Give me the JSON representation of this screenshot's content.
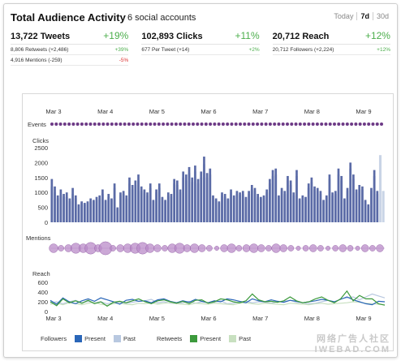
{
  "header": {
    "title": "Total Audience Activity",
    "subtitle": "6 social accounts",
    "ranges": [
      "Today",
      "7d",
      "30d"
    ],
    "active_range": "7d"
  },
  "stats": [
    {
      "label": "13,722 Tweets",
      "pct": "+19%",
      "subs": [
        {
          "label": "8,806 Retweets (+2,486)",
          "pct": "+39%",
          "dir": "up"
        },
        {
          "label": "4,916 Mentions (-259)",
          "pct": "-5%",
          "dir": "down"
        }
      ]
    },
    {
      "label": "102,893 Clicks",
      "pct": "+11%",
      "subs": [
        {
          "label": "677 Per Tweet (+14)",
          "pct": "+2%",
          "dir": "up"
        }
      ]
    },
    {
      "label": "20,712 Reach",
      "pct": "+12%",
      "subs": [
        {
          "label": "20,712 Followers (+2,224)",
          "pct": "+12%",
          "dir": "up"
        }
      ]
    }
  ],
  "colors": {
    "present_bar": "#5a6aa6",
    "past_bar": "#c9d4e6",
    "event_dot": "#6d3a86",
    "mention_bubble": "#b98bc8",
    "followers_present": "#2a66b8",
    "followers_past": "#b8c8e0",
    "retweets_present": "#3c9a3c",
    "retweets_past": "#c8e0c0",
    "positive": "#4cae4c",
    "negative": "#dd3333"
  },
  "chart_data": {
    "type": "bar",
    "x_ticks": [
      "Mar 3",
      "Mar 4",
      "Mar 5",
      "Mar 6",
      "Mar 7",
      "Mar 8",
      "Mar 9"
    ],
    "events_label": "Events",
    "clicks": {
      "label": "Clicks",
      "y_ticks": [
        "2500",
        "2000",
        "1500",
        "1000",
        "500",
        "0"
      ],
      "ylim": [
        0,
        2500
      ],
      "present": [
        1450,
        1200,
        900,
        1100,
        950,
        1000,
        800,
        1150,
        900,
        600,
        700,
        650,
        700,
        800,
        750,
        850,
        900,
        1100,
        750,
        950,
        800,
        1300,
        500,
        1000,
        1050,
        900,
        1500,
        1250,
        1400,
        1600,
        1200,
        1100,
        1000,
        1300,
        750,
        1100,
        1300,
        850,
        750,
        1000,
        950,
        1450,
        1400,
        1100,
        1700,
        1600,
        1850,
        1500,
        1900,
        1450,
        1700,
        2200,
        1650,
        1800,
        900,
        800,
        700,
        1000,
        950,
        800,
        1100,
        900,
        1050,
        1000,
        1050,
        850,
        1050,
        1250,
        1150,
        950,
        850,
        900,
        1100,
        1450,
        1750,
        1800,
        900,
        1150,
        1050,
        1550,
        1400,
        1000,
        1750,
        800,
        900,
        850,
        1300,
        1500,
        1200,
        1150,
        1050,
        750,
        900,
        1600,
        1000,
        1050,
        1800,
        1550,
        800,
        1150,
        2000,
        1600,
        1100,
        1250,
        1200,
        750,
        600,
        1150,
        1750,
        1050,
        1700,
        1200
      ],
      "past": [
        1200,
        1000,
        800,
        900,
        850,
        850,
        700,
        950,
        800,
        550,
        650,
        600,
        650,
        700,
        700,
        750,
        800,
        950,
        700,
        850,
        750,
        1150,
        450,
        900,
        950,
        800,
        1300,
        1100,
        1250,
        1400,
        1050,
        1000,
        900,
        1150,
        700,
        1000,
        1150,
        800,
        700,
        900,
        850,
        1300,
        1250,
        1000,
        1500,
        1400,
        1650,
        1350,
        1700,
        1300,
        1500,
        1950,
        1500,
        1600,
        850,
        750,
        650,
        900,
        850,
        750,
        1000,
        850,
        950,
        900,
        950,
        800,
        950,
        1100,
        1050,
        850,
        800,
        850,
        1000,
        1300,
        1550,
        1600,
        850,
        1050,
        950,
        1400,
        1250,
        900,
        1550,
        750,
        850,
        800,
        1150,
        1350,
        1100,
        1050,
        950,
        700,
        850,
        1450,
        900,
        950,
        1600,
        1400,
        750,
        1050,
        1800,
        1450,
        1000,
        1100,
        1100,
        700,
        550,
        1050,
        1550,
        950,
        2250,
        1050
      ]
    },
    "mentions": {
      "label": "Mentions",
      "values": [
        6,
        4,
        5,
        7,
        6,
        8,
        5,
        9,
        4,
        5,
        6,
        7,
        8,
        6,
        5,
        4,
        6,
        7,
        5,
        6,
        5,
        4,
        3,
        5,
        6,
        4,
        5,
        6,
        5,
        4,
        6,
        5,
        4,
        3,
        4,
        5,
        4,
        3,
        4,
        5,
        4,
        3,
        5,
        4,
        5
      ]
    },
    "reach": {
      "label": "Reach",
      "y_ticks": [
        "600",
        "400",
        "200",
        "0"
      ],
      "ylim": [
        0,
        600
      ],
      "followers_present": [
        230,
        150,
        280,
        200,
        160,
        220,
        260,
        210,
        280,
        240,
        200,
        150,
        230,
        250,
        210,
        220,
        180,
        240,
        260,
        210,
        180,
        220,
        190,
        250,
        210,
        180,
        220,
        200,
        260,
        240,
        210,
        180,
        260,
        220,
        200,
        240,
        210,
        190,
        230,
        210,
        180,
        200,
        220,
        250,
        230,
        200,
        250,
        300,
        240,
        200,
        160,
        140,
        210,
        200
      ],
      "followers_past": [
        180,
        200,
        160,
        200,
        230,
        180,
        210,
        180,
        200,
        160,
        180,
        200,
        170,
        190,
        210,
        220,
        250,
        180,
        200,
        170,
        160,
        180,
        210,
        170,
        200,
        180,
        190,
        220,
        160,
        170,
        200,
        210,
        180,
        200,
        190,
        170,
        200,
        210,
        230,
        190,
        180,
        160,
        170,
        200,
        230,
        190,
        260,
        280,
        300,
        240,
        300,
        360,
        320,
        280
      ],
      "retweets_present": [
        200,
        120,
        260,
        180,
        220,
        170,
        230,
        160,
        200,
        110,
        190,
        210,
        180,
        220,
        260,
        200,
        160,
        220,
        240,
        200,
        170,
        210,
        160,
        230,
        240,
        170,
        200,
        260,
        240,
        200,
        180,
        220,
        360,
        240,
        200,
        210,
        190,
        220,
        300,
        220,
        180,
        200,
        260,
        300,
        230,
        180,
        260,
        420,
        220,
        330,
        260,
        260,
        160,
        130
      ],
      "retweets_past": [
        150,
        170,
        140,
        180,
        160,
        140,
        170,
        190,
        150,
        130,
        160,
        170,
        150,
        140,
        170,
        160,
        180,
        150,
        170,
        180,
        160,
        150,
        140,
        170,
        160,
        150,
        170,
        160,
        150,
        140,
        170,
        180,
        160,
        150,
        170,
        160,
        150,
        140,
        170,
        160,
        150,
        140,
        160,
        170,
        150,
        160,
        170,
        180,
        200,
        190,
        170,
        160,
        150,
        140
      ]
    },
    "legend": {
      "followers": "Followers",
      "retweets": "Retweets",
      "present": "Present",
      "past": "Past"
    }
  },
  "watermark": {
    "line1": "网络广告人社区",
    "line2": "IWEBAD.COM"
  }
}
